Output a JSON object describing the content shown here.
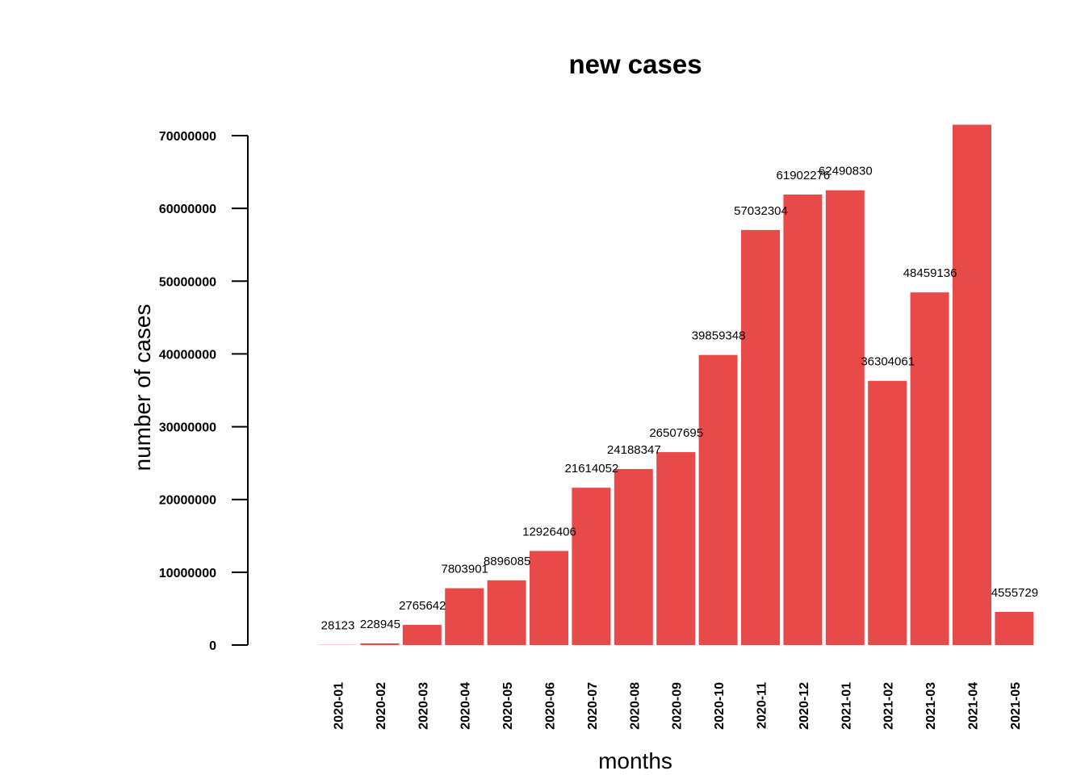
{
  "chart_data": {
    "type": "bar",
    "title": "new cases",
    "xlabel": "months",
    "ylabel": "number of cases",
    "categories": [
      "2020-01",
      "2020-02",
      "2020-03",
      "2020-04",
      "2020-05",
      "2020-06",
      "2020-07",
      "2020-08",
      "2020-09",
      "2020-10",
      "2020-11",
      "2020-12",
      "2021-01",
      "2021-02",
      "2021-03",
      "2021-04",
      "2021-05"
    ],
    "values": [
      28123,
      228945,
      2765642,
      7803901,
      8896085,
      12926406,
      21614052,
      24188347,
      26507695,
      39859348,
      57032304,
      61902276,
      62490830,
      36304061,
      48459136,
      71500000,
      4555729
    ],
    "data_labels": [
      "28123",
      "228945",
      "2765642",
      "7803901",
      "8896085",
      "12926406",
      "21614052",
      "24188347",
      "26507695",
      "39859348",
      "57032304",
      "61902276",
      "62490830",
      "36304061",
      "48459136",
      "",
      "4555729"
    ],
    "yticks": [
      0,
      10000000,
      20000000,
      30000000,
      40000000,
      50000000,
      60000000,
      70000000
    ],
    "ytick_labels": [
      "0",
      "10000000",
      "20000000",
      "30000000",
      "40000000",
      "50000000",
      "60000000",
      "70000000"
    ],
    "ylim": [
      0,
      70000000
    ],
    "bar_color": "#E84A4A",
    "grid": false,
    "legend": "none"
  }
}
